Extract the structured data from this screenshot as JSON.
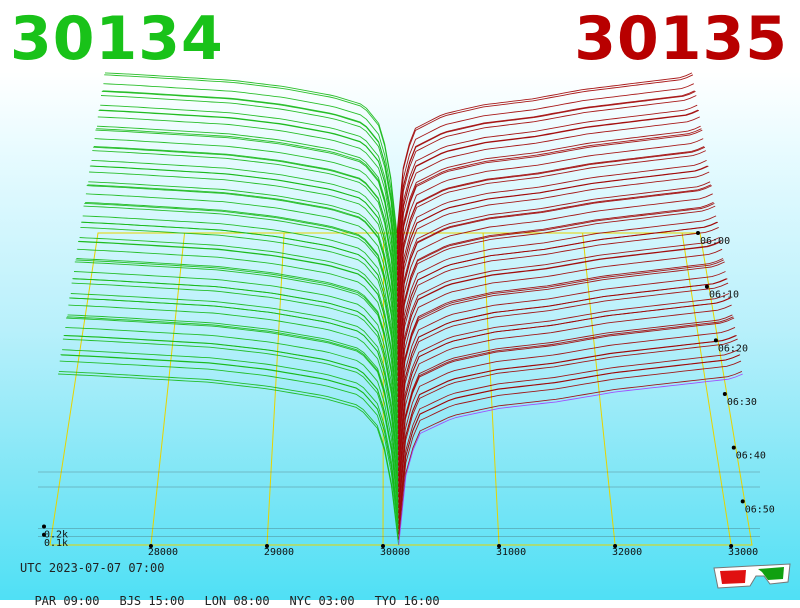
{
  "header": {
    "bid_price": "30134",
    "ask_price": "30135",
    "bid_color": "#19c219",
    "ask_color": "#b80000"
  },
  "footer": {
    "utc_label": "UTC 2023-07-07 07:00",
    "timezones": [
      "PAR 09:00",
      "BJS 15:00",
      "LON 08:00",
      "NYC 03:00",
      "TYO 16:00"
    ]
  },
  "icons": {
    "glasses": "3d-glasses-icon"
  },
  "chart_data": {
    "type": "area",
    "view": "3d-depth",
    "x_ticks": [
      28000,
      29000,
      30000,
      31000,
      32000,
      33000
    ],
    "x_range": [
      27130,
      33180
    ],
    "time_ticks": [
      "06:00",
      "06:10",
      "06:20",
      "06:30",
      "06:40",
      "06:50"
    ],
    "volume_ticks": [
      "0.1k",
      "0.2k"
    ],
    "volume_range": [
      0,
      1.05
    ],
    "mid_price": 30134.5,
    "slice_count": 60,
    "series": [
      {
        "side": "bid",
        "color": "#14b814",
        "x": [
          27200,
          27500,
          28000,
          28500,
          29000,
          29500,
          29800,
          29950,
          30050,
          30134
        ],
        "y": [
          1.05,
          1.04,
          1.02,
          1.0,
          0.96,
          0.9,
          0.84,
          0.72,
          0.5,
          0.0
        ]
      },
      {
        "side": "ask",
        "color": "#a00000",
        "x": [
          30135,
          30200,
          30300,
          30600,
          31000,
          31500,
          32000,
          32500,
          33000,
          33100
        ],
        "y": [
          0.0,
          0.45,
          0.68,
          0.78,
          0.84,
          0.88,
          0.94,
          0.98,
          1.02,
          1.05
        ]
      }
    ]
  }
}
